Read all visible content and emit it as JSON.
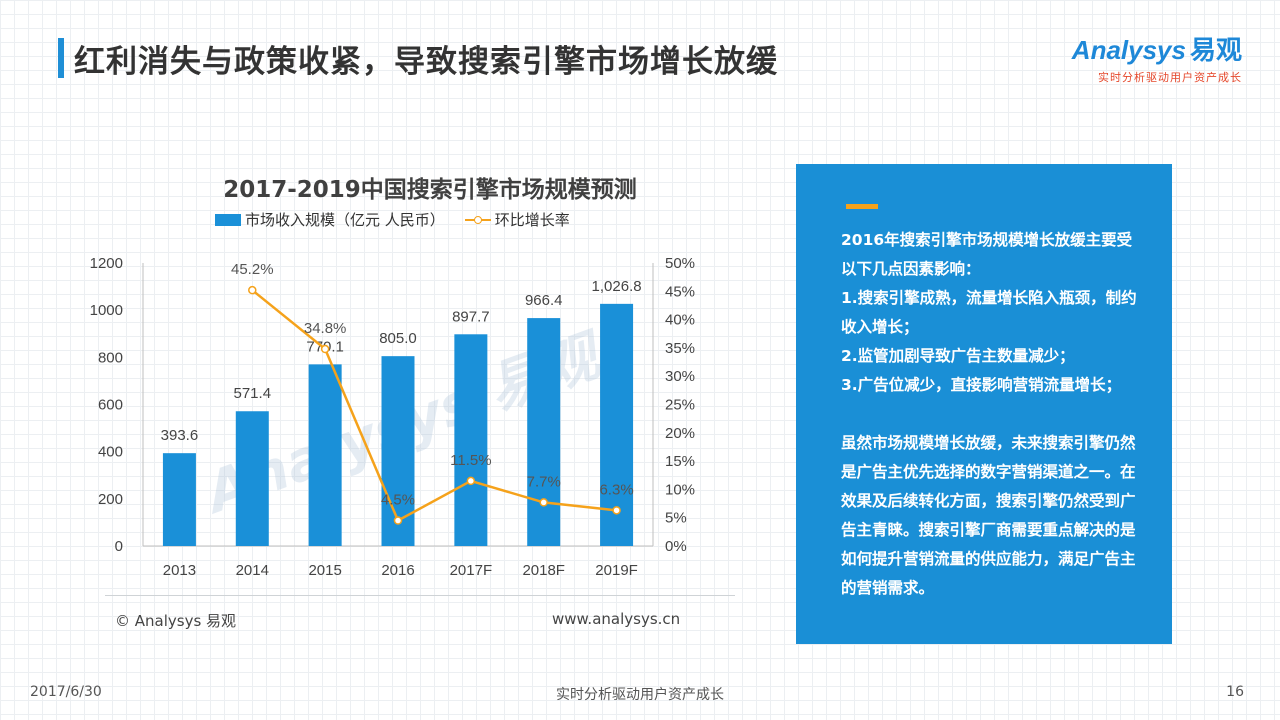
{
  "page": {
    "title": "红利消失与政策收紧，导致搜索引擎市场增长放缓",
    "logo_brand": "Analysys",
    "logo_brand_cn": "易观",
    "logo_tagline": "实时分析驱动用户资产成长"
  },
  "colors": {
    "bar": "#1a90d8",
    "line": "#f5a21b",
    "panel": "#1a8fd6",
    "title_bar": "#1f8fd6"
  },
  "chart_data": {
    "type": "bar+line",
    "title": "2017-2019中国搜索引擎市场规模预测",
    "categories": [
      "2013",
      "2014",
      "2015",
      "2016",
      "2017F",
      "2018F",
      "2019F"
    ],
    "series": [
      {
        "name": "市场收入规模（亿元 人民币）",
        "type": "bar",
        "axis": "left",
        "values": [
          393.6,
          571.4,
          770.1,
          805.0,
          897.7,
          966.4,
          1026.8
        ],
        "labels": [
          "393.6",
          "571.4",
          "770.1",
          "805.0",
          "897.7",
          "966.4",
          "1,026.8"
        ]
      },
      {
        "name": "环比增长率",
        "type": "line",
        "axis": "right",
        "values": [
          null,
          45.2,
          34.8,
          4.5,
          11.5,
          7.7,
          6.3
        ],
        "labels": [
          "",
          "45.2%",
          "34.8%",
          "4.5%",
          "11.5%",
          "7.7%",
          "6.3%"
        ]
      }
    ],
    "ylim_left": [
      0,
      1200
    ],
    "yticks_left": [
      0,
      200,
      400,
      600,
      800,
      1000,
      1200
    ],
    "ylim_right": [
      0,
      50
    ],
    "yticks_right": [
      "0%",
      "5%",
      "10%",
      "15%",
      "20%",
      "25%",
      "30%",
      "35%",
      "40%",
      "45%",
      "50%"
    ],
    "source": "© Analysys 易观",
    "website": "www.analysys.cn",
    "watermark": "Analysys 易观"
  },
  "panel": {
    "paragraph1": [
      "2016年搜索引擎市场规模增长放缓主要受以下几点因素影响：",
      "1.搜索引擎成熟，流量增长陷入瓶颈，制约收入增长；",
      "2.监管加剧导致广告主数量减少；",
      "3.广告位减少，直接影响营销流量增长；"
    ],
    "paragraph2": "虽然市场规模增长放缓，未来搜索引擎仍然是广告主优先选择的数字营销渠道之一。在效果及后续转化方面，搜索引擎仍然受到广告主青睐。搜索引擎厂商需要重点解决的是如何提升营销流量的供应能力，满足广告主的营销需求。"
  },
  "footer": {
    "date": "2017/6/30",
    "slogan": "实时分析驱动用户资产成长",
    "page_number": "16"
  }
}
